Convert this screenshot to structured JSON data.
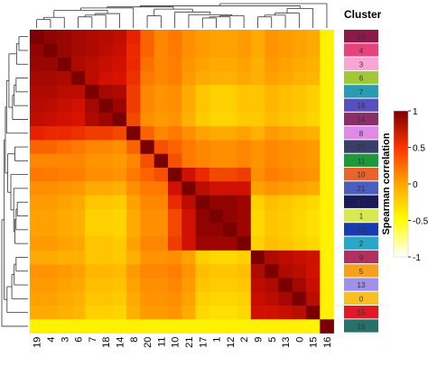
{
  "chart_data": {
    "type": "heatmap",
    "title": "",
    "order": [
      "19",
      "4",
      "3",
      "6",
      "7",
      "18",
      "14",
      "8",
      "20",
      "11",
      "10",
      "21",
      "17",
      "1",
      "12",
      "2",
      "9",
      "5",
      "13",
      "0",
      "15",
      "16"
    ],
    "values": [
      [
        1.0,
        0.95,
        0.93,
        0.9,
        0.88,
        0.86,
        0.84,
        0.72,
        0.55,
        0.45,
        0.5,
        0.42,
        0.38,
        0.35,
        0.35,
        0.38,
        0.32,
        0.4,
        0.38,
        0.35,
        0.32,
        0.05
      ],
      [
        0.95,
        1.0,
        0.93,
        0.9,
        0.88,
        0.85,
        0.82,
        0.7,
        0.55,
        0.45,
        0.5,
        0.42,
        0.38,
        0.35,
        0.35,
        0.38,
        0.32,
        0.4,
        0.38,
        0.35,
        0.32,
        0.05
      ],
      [
        0.93,
        0.93,
        1.0,
        0.88,
        0.85,
        0.82,
        0.8,
        0.7,
        0.52,
        0.45,
        0.48,
        0.4,
        0.35,
        0.32,
        0.32,
        0.35,
        0.3,
        0.38,
        0.35,
        0.32,
        0.3,
        0.05
      ],
      [
        0.9,
        0.9,
        0.88,
        1.0,
        0.85,
        0.8,
        0.78,
        0.68,
        0.5,
        0.45,
        0.48,
        0.38,
        0.32,
        0.3,
        0.3,
        0.33,
        0.3,
        0.35,
        0.33,
        0.3,
        0.28,
        0.05
      ],
      [
        0.88,
        0.88,
        0.85,
        0.85,
        1.0,
        0.9,
        0.88,
        0.65,
        0.45,
        0.4,
        0.42,
        0.32,
        0.22,
        0.18,
        0.18,
        0.22,
        0.22,
        0.28,
        0.25,
        0.22,
        0.18,
        0.05
      ],
      [
        0.86,
        0.85,
        0.82,
        0.8,
        0.9,
        1.0,
        0.92,
        0.65,
        0.45,
        0.4,
        0.42,
        0.32,
        0.22,
        0.18,
        0.18,
        0.22,
        0.22,
        0.28,
        0.25,
        0.22,
        0.18,
        0.05
      ],
      [
        0.84,
        0.82,
        0.8,
        0.78,
        0.88,
        0.92,
        1.0,
        0.62,
        0.42,
        0.38,
        0.4,
        0.3,
        0.2,
        0.16,
        0.16,
        0.2,
        0.2,
        0.26,
        0.23,
        0.2,
        0.16,
        0.05
      ],
      [
        0.72,
        0.7,
        0.7,
        0.68,
        0.65,
        0.65,
        0.62,
        1.0,
        0.55,
        0.45,
        0.5,
        0.42,
        0.35,
        0.32,
        0.32,
        0.35,
        0.3,
        0.38,
        0.35,
        0.32,
        0.3,
        0.05
      ],
      [
        0.55,
        0.55,
        0.52,
        0.5,
        0.45,
        0.45,
        0.42,
        0.55,
        1.0,
        0.6,
        0.55,
        0.5,
        0.45,
        0.42,
        0.42,
        0.45,
        0.4,
        0.45,
        0.42,
        0.4,
        0.38,
        0.05
      ],
      [
        0.45,
        0.45,
        0.45,
        0.45,
        0.4,
        0.4,
        0.38,
        0.45,
        0.6,
        1.0,
        0.6,
        0.5,
        0.45,
        0.42,
        0.42,
        0.45,
        0.4,
        0.45,
        0.42,
        0.4,
        0.38,
        0.05
      ],
      [
        0.5,
        0.5,
        0.48,
        0.48,
        0.42,
        0.42,
        0.4,
        0.5,
        0.55,
        0.6,
        1.0,
        0.8,
        0.7,
        0.62,
        0.62,
        0.65,
        0.42,
        0.48,
        0.45,
        0.42,
        0.4,
        0.05
      ],
      [
        0.42,
        0.42,
        0.4,
        0.38,
        0.32,
        0.32,
        0.3,
        0.42,
        0.5,
        0.5,
        0.8,
        1.0,
        0.85,
        0.8,
        0.8,
        0.8,
        0.35,
        0.4,
        0.38,
        0.35,
        0.32,
        0.05
      ],
      [
        0.38,
        0.38,
        0.35,
        0.32,
        0.22,
        0.22,
        0.2,
        0.35,
        0.45,
        0.45,
        0.7,
        0.85,
        1.0,
        0.95,
        0.95,
        0.92,
        0.18,
        0.25,
        0.22,
        0.18,
        0.15,
        0.05
      ],
      [
        0.35,
        0.35,
        0.32,
        0.3,
        0.18,
        0.18,
        0.16,
        0.32,
        0.42,
        0.42,
        0.62,
        0.8,
        0.95,
        1.0,
        0.95,
        0.92,
        0.15,
        0.22,
        0.2,
        0.16,
        0.12,
        0.05
      ],
      [
        0.35,
        0.35,
        0.32,
        0.3,
        0.18,
        0.18,
        0.16,
        0.32,
        0.42,
        0.42,
        0.62,
        0.8,
        0.95,
        0.95,
        1.0,
        0.92,
        0.15,
        0.22,
        0.2,
        0.16,
        0.12,
        0.05
      ],
      [
        0.38,
        0.38,
        0.35,
        0.33,
        0.22,
        0.22,
        0.2,
        0.35,
        0.45,
        0.45,
        0.65,
        0.8,
        0.92,
        0.92,
        0.92,
        1.0,
        0.18,
        0.25,
        0.22,
        0.18,
        0.15,
        0.05
      ],
      [
        0.32,
        0.32,
        0.3,
        0.3,
        0.22,
        0.22,
        0.2,
        0.3,
        0.4,
        0.4,
        0.42,
        0.35,
        0.18,
        0.15,
        0.15,
        0.18,
        1.0,
        0.88,
        0.85,
        0.82,
        0.8,
        0.05
      ],
      [
        0.4,
        0.4,
        0.38,
        0.35,
        0.28,
        0.28,
        0.26,
        0.38,
        0.45,
        0.45,
        0.48,
        0.4,
        0.25,
        0.22,
        0.22,
        0.25,
        0.88,
        1.0,
        0.88,
        0.85,
        0.8,
        0.05
      ],
      [
        0.38,
        0.38,
        0.35,
        0.33,
        0.25,
        0.25,
        0.23,
        0.35,
        0.42,
        0.42,
        0.45,
        0.38,
        0.22,
        0.2,
        0.2,
        0.22,
        0.85,
        0.88,
        1.0,
        0.9,
        0.82,
        0.05
      ],
      [
        0.35,
        0.35,
        0.32,
        0.3,
        0.22,
        0.22,
        0.2,
        0.32,
        0.4,
        0.4,
        0.42,
        0.35,
        0.18,
        0.16,
        0.16,
        0.18,
        0.82,
        0.85,
        0.9,
        1.0,
        0.85,
        0.05
      ],
      [
        0.32,
        0.32,
        0.3,
        0.28,
        0.18,
        0.18,
        0.16,
        0.3,
        0.38,
        0.38,
        0.4,
        0.32,
        0.15,
        0.12,
        0.12,
        0.15,
        0.8,
        0.8,
        0.82,
        0.85,
        1.0,
        0.05
      ],
      [
        0.05,
        0.05,
        0.05,
        0.05,
        0.05,
        0.05,
        0.05,
        0.05,
        0.05,
        0.05,
        0.05,
        0.05,
        0.05,
        0.05,
        0.05,
        0.05,
        0.05,
        0.05,
        0.05,
        0.05,
        0.05,
        1.0
      ]
    ],
    "cluster_annotation": {
      "title": "Cluster",
      "labels": [
        "19",
        "4",
        "3",
        "6",
        "7",
        "18",
        "14",
        "8",
        "20",
        "11",
        "10",
        "21",
        "17",
        "1",
        "12",
        "2",
        "9",
        "5",
        "13",
        "0",
        "15",
        "16"
      ],
      "colors": [
        "#8b1a4a",
        "#e8427a",
        "#f7a6d6",
        "#a4c639",
        "#2a9bb0",
        "#5a4fc0",
        "#8a2e6a",
        "#e08ae8",
        "#3a3e6a",
        "#1a9a3a",
        "#e8642c",
        "#4a5ec0",
        "#1a1a5a",
        "#d8e850",
        "#1a3ab0",
        "#28a8c8",
        "#b03060",
        "#f7a020",
        "#a090e8",
        "#f7c020",
        "#e01828",
        "#28706a"
      ]
    },
    "colorbar": {
      "label": "Spearman correlation",
      "range": [
        -1,
        1
      ],
      "ticks": [
        1,
        0.5,
        0,
        -0.5,
        -1
      ],
      "tick_labels": [
        "1",
        "0.5",
        "0",
        "-0.5",
        "-1"
      ],
      "colors": [
        "#ffffff",
        "#ffff00",
        "#ffa500",
        "#ff3300",
        "#7a0000"
      ]
    },
    "dendrogram_x": [
      {
        "members": [
          "19",
          "4"
        ],
        "h": 0.38
      },
      {
        "members": [
          "19",
          "4",
          "3"
        ],
        "h": 0.48
      },
      {
        "members": [
          "6",
          "7"
        ],
        "h": 0.5
      },
      {
        "members": [
          "6",
          "7",
          "18"
        ],
        "h": 0.58
      },
      {
        "members": [
          "6",
          "7",
          "18",
          "14"
        ],
        "h": 0.65
      },
      {
        "members": [
          "19",
          "4",
          "3",
          "6",
          "7",
          "18",
          "14"
        ],
        "h": 0.8
      },
      {
        "members": [
          "19",
          "4",
          "3",
          "6",
          "7",
          "18",
          "14",
          "8"
        ],
        "h": 0.9
      },
      {
        "members": [
          "20",
          "11"
        ],
        "h": 0.55
      },
      {
        "members": [
          "17",
          "1"
        ],
        "h": 0.45
      },
      {
        "members": [
          "17",
          "1",
          "12"
        ],
        "h": 0.5
      },
      {
        "members": [
          "17",
          "1",
          "12",
          "2"
        ],
        "h": 0.55
      },
      {
        "members": [
          "21",
          "17",
          "1",
          "12",
          "2"
        ],
        "h": 0.6
      },
      {
        "members": [
          "10",
          "21",
          "17",
          "1",
          "12",
          "2"
        ],
        "h": 0.72
      },
      {
        "members": [
          "20",
          "11",
          "10",
          "21",
          "17",
          "1",
          "12",
          "2"
        ],
        "h": 0.85
      },
      {
        "members": [
          "19",
          "4",
          "3",
          "6",
          "7",
          "18",
          "14",
          "8",
          "20",
          "11",
          "10",
          "21",
          "17",
          "1",
          "12",
          "2"
        ],
        "h": 0.95
      },
      {
        "members": [
          "9",
          "5"
        ],
        "h": 0.5
      },
      {
        "members": [
          "9",
          "5",
          "13"
        ],
        "h": 0.58
      },
      {
        "members": [
          "9",
          "5",
          "13",
          "0"
        ],
        "h": 0.68
      },
      {
        "members": [
          "9",
          "5",
          "13",
          "0",
          "15"
        ],
        "h": 0.88
      },
      {
        "members": [
          "19",
          "4",
          "3",
          "6",
          "7",
          "18",
          "14",
          "8",
          "20",
          "11",
          "10",
          "21",
          "17",
          "1",
          "12",
          "2",
          "9",
          "5",
          "13",
          "0",
          "15"
        ],
        "h": 1.0
      },
      {
        "members": [
          "19",
          "4",
          "3",
          "6",
          "7",
          "18",
          "14",
          "8",
          "20",
          "11",
          "10",
          "21",
          "17",
          "1",
          "12",
          "2",
          "9",
          "5",
          "13",
          "0",
          "15",
          "16"
        ],
        "h": 1.1
      }
    ]
  }
}
